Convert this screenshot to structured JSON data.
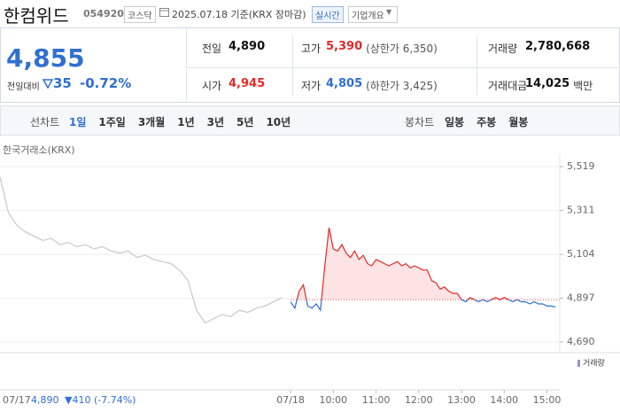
{
  "header": {
    "name": "한컴위드",
    "code": "054920",
    "market": "코스닥",
    "date": "2025.07.18 기준(KRX 장마감)",
    "realtime": "실시간",
    "company_info": "기업개요"
  },
  "quote": {
    "price": "4,855",
    "change_label": "전일대비",
    "change": "35",
    "change_pct": "-0.72%",
    "fields": [
      {
        "label": "전일",
        "value": "4,890",
        "color": "#111111"
      },
      {
        "label": "고가",
        "value": "5,390",
        "note": "(상한가 6,350)",
        "color": "#e22926"
      },
      {
        "label": "거래량",
        "value": "2,780,668",
        "color": "#111111"
      },
      {
        "label": "시가",
        "value": "4,945",
        "color": "#e22926"
      },
      {
        "label": "저가",
        "value": "4,805",
        "note": "(하한가 3,425)",
        "color": "#2f6fd1"
      },
      {
        "label": "거래대금",
        "value": "14,025",
        "unit": "백만",
        "color": "#111111"
      }
    ]
  },
  "tabs": {
    "line_label": "선차트",
    "line": [
      "1일",
      "1주일",
      "3개월",
      "1년",
      "3년",
      "5년",
      "10년"
    ],
    "candle_label": "봉차트",
    "candle": [
      "일봉",
      "주봉",
      "월봉"
    ]
  },
  "chart_data": {
    "type": "line",
    "source": "한국거래소(KRX)",
    "ylim": [
      4690,
      5519
    ],
    "yticks": [
      {
        "value": 5519,
        "label": "5,519"
      },
      {
        "value": 5311,
        "label": "5,311"
      },
      {
        "value": 5104,
        "label": "5,104"
      },
      {
        "value": 4897,
        "label": "4,897"
      },
      {
        "value": 4690,
        "label": "4,690"
      }
    ],
    "xlim": [
      2.2,
      15.3
    ],
    "xticks": [
      {
        "value": 9,
        "label": "07/18"
      },
      {
        "value": 10,
        "label": "10:00"
      },
      {
        "value": 11,
        "label": "11:00"
      },
      {
        "value": 12,
        "label": "12:00"
      },
      {
        "value": 13,
        "label": "13:00"
      },
      {
        "value": 14,
        "label": "14:00"
      },
      {
        "value": 15,
        "label": "15:00"
      }
    ],
    "reference": 4890,
    "series": [
      {
        "color": "#c8c8c8",
        "x": [
          2.2,
          2.4,
          2.6,
          2.8,
          3.0,
          3.2,
          3.4,
          3.6,
          3.8,
          4.0,
          4.2,
          4.4,
          4.6,
          4.8,
          5.0,
          5.2,
          5.4,
          5.6,
          5.8,
          6.0,
          6.2,
          6.4,
          6.6,
          6.8,
          7.0,
          7.2,
          7.4,
          7.6,
          7.8,
          8.0,
          8.2,
          8.4,
          8.6,
          8.8
        ],
        "values": [
          5470,
          5300,
          5240,
          5210,
          5190,
          5170,
          5180,
          5150,
          5160,
          5140,
          5150,
          5130,
          5140,
          5120,
          5110,
          5120,
          5090,
          5100,
          5080,
          5070,
          5060,
          5030,
          4980,
          4840,
          4780,
          4800,
          4820,
          4810,
          4840,
          4830,
          4850,
          4860,
          4880,
          4900
        ]
      },
      {
        "color": "#e22926",
        "color_below": "#2f6fd1",
        "fill": "#fde3e3",
        "x": [
          9.0,
          9.1,
          9.2,
          9.3,
          9.4,
          9.5,
          9.6,
          9.7,
          9.8,
          9.9,
          10.0,
          10.1,
          10.2,
          10.3,
          10.4,
          10.5,
          10.6,
          10.7,
          10.8,
          10.9,
          11.0,
          11.1,
          11.2,
          11.3,
          11.4,
          11.5,
          11.6,
          11.7,
          11.8,
          11.9,
          12.0,
          12.1,
          12.2,
          12.3,
          12.4,
          12.5,
          12.6,
          12.7,
          12.8,
          12.9,
          13.0,
          13.1,
          13.2,
          13.3,
          13.4,
          13.5,
          13.6,
          13.7,
          13.8,
          13.9,
          14.0,
          14.1,
          14.2,
          14.3,
          14.4,
          14.5,
          14.6,
          14.7,
          14.8,
          14.9,
          15.0,
          15.1,
          15.2
        ],
        "values": [
          4880,
          4850,
          4930,
          4960,
          4860,
          4850,
          4870,
          4840,
          5050,
          5230,
          5130,
          5120,
          5150,
          5110,
          5090,
          5120,
          5080,
          5100,
          5060,
          5050,
          5080,
          5070,
          5060,
          5050,
          5060,
          5070,
          5050,
          5060,
          5040,
          5050,
          5040,
          5030,
          5030,
          4980,
          4970,
          4940,
          4950,
          4930,
          4920,
          4920,
          4890,
          4880,
          4900,
          4890,
          4880,
          4890,
          4880,
          4890,
          4900,
          4890,
          4900,
          4890,
          4880,
          4890,
          4880,
          4880,
          4870,
          4880,
          4870,
          4870,
          4860,
          4860,
          4855
        ]
      }
    ],
    "volume_label": "거래량",
    "footer": {
      "date": "07/17",
      "close": "4,890",
      "change": "▼410 (-7.74%)"
    }
  }
}
